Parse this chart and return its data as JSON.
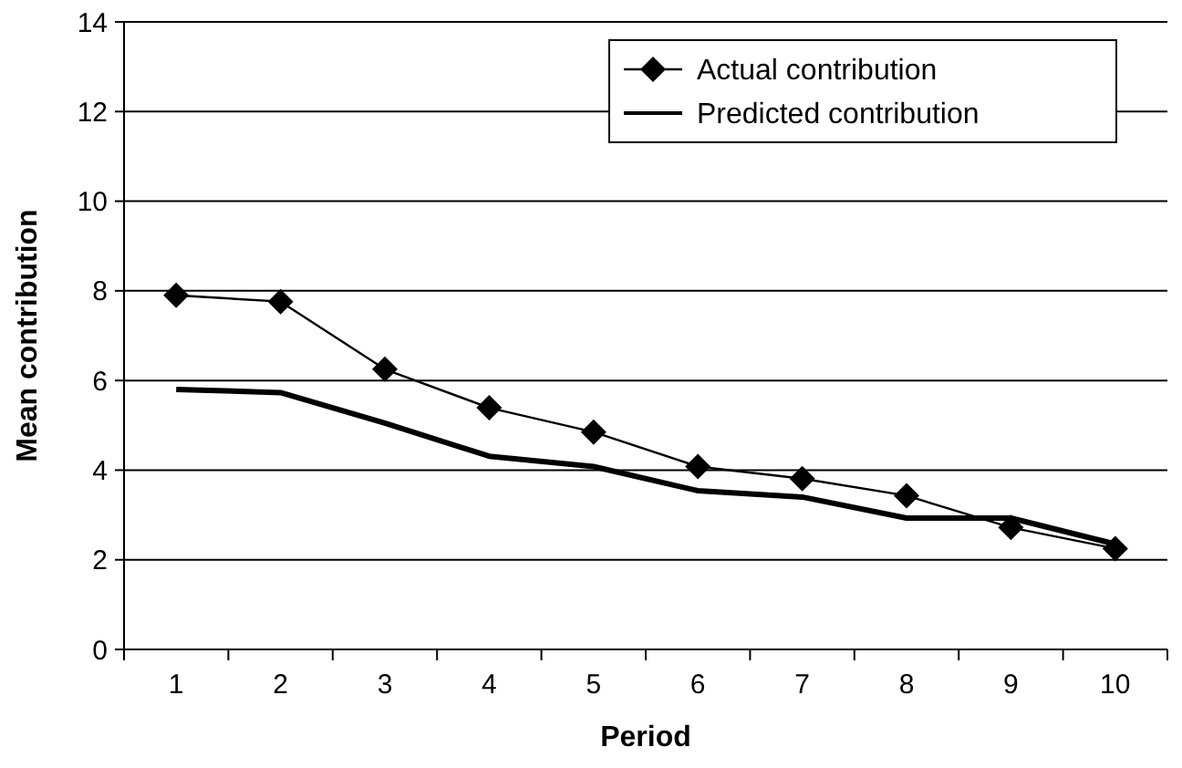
{
  "chart_data": {
    "type": "line",
    "xlabel": "Period",
    "ylabel": "Mean contribution",
    "categories": [
      "1",
      "2",
      "3",
      "4",
      "5",
      "6",
      "7",
      "8",
      "9",
      "10"
    ],
    "series": [
      {
        "name": "Actual contribution",
        "color": "#000000",
        "marker": "diamond",
        "values": [
          7.9,
          7.76,
          6.25,
          5.39,
          4.85,
          4.08,
          3.81,
          3.43,
          2.72,
          2.25
        ]
      },
      {
        "name": "Predicted contribution",
        "color": "#000000",
        "marker": "none",
        "values": [
          5.8,
          5.73,
          5.05,
          4.31,
          4.08,
          3.54,
          3.4,
          2.93,
          2.93,
          2.35
        ]
      }
    ],
    "ylim": [
      0,
      14
    ],
    "yticks": [
      0,
      2,
      4,
      6,
      8,
      10,
      12,
      14
    ],
    "grid": "y",
    "legend": "top right"
  }
}
